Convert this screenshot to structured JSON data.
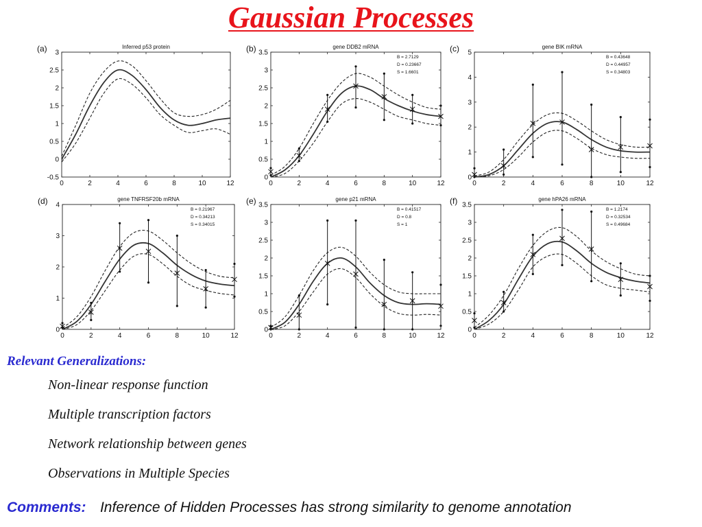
{
  "title": "Gaussian Processes",
  "generalizations": {
    "heading": "Relevant Generalizations:",
    "items": [
      "Non-linear response function",
      "Multiple transcription factors",
      "Network relationship between genes",
      "Observations in Multiple Species"
    ]
  },
  "comments": {
    "label": "Comments:",
    "text": "Inference of Hidden Processes has strong similarity to genome annotation"
  },
  "chart_data": [
    {
      "type": "line",
      "panel_label": "(a)",
      "title": "Inferred p53 protein",
      "xlim": [
        0,
        12
      ],
      "ylim": [
        -0.5,
        3
      ],
      "xticks": [
        0,
        2,
        4,
        6,
        8,
        10,
        12
      ],
      "yticks": [
        -0.5,
        0,
        0.5,
        1,
        1.5,
        2,
        2.5,
        3
      ],
      "ytick_labels": [
        "-0.5",
        "0",
        "0.5",
        "1",
        "1.5",
        "2",
        "2.5",
        "3"
      ],
      "params": [],
      "curve": {
        "x": [
          0,
          1,
          2,
          3,
          4,
          5,
          6,
          7,
          8,
          9,
          10,
          11,
          12
        ],
        "mean": [
          0,
          0.7,
          1.5,
          2.15,
          2.5,
          2.35,
          1.95,
          1.45,
          1.1,
          0.95,
          1.0,
          1.1,
          1.15
        ],
        "upper": [
          0.08,
          0.95,
          1.85,
          2.45,
          2.75,
          2.62,
          2.2,
          1.7,
          1.3,
          1.2,
          1.25,
          1.4,
          1.65
        ],
        "lower": [
          -0.08,
          0.45,
          1.15,
          1.85,
          2.25,
          2.1,
          1.72,
          1.25,
          0.95,
          0.75,
          0.8,
          0.85,
          0.7
        ]
      },
      "observations": []
    },
    {
      "type": "line",
      "panel_label": "(b)",
      "title": "gene DDB2 mRNA",
      "xlim": [
        0,
        12
      ],
      "ylim": [
        0,
        3.5
      ],
      "xticks": [
        0,
        2,
        4,
        6,
        8,
        10,
        12
      ],
      "yticks": [
        0,
        0.5,
        1,
        1.5,
        2,
        2.5,
        3,
        3.5
      ],
      "ytick_labels": [
        "0",
        "0.5",
        "1",
        "1.5",
        "2",
        "2.5",
        "3",
        "3.5"
      ],
      "params": [
        "B = 2.7129",
        "D = 0.23667",
        "S = 1.6601"
      ],
      "curve": {
        "x": [
          0,
          1,
          2,
          3,
          4,
          5,
          6,
          7,
          8,
          9,
          10,
          11,
          12
        ],
        "mean": [
          0,
          0.2,
          0.6,
          1.2,
          1.85,
          2.35,
          2.55,
          2.45,
          2.2,
          2.0,
          1.85,
          1.75,
          1.7
        ],
        "upper": [
          0.05,
          0.3,
          0.8,
          1.5,
          2.15,
          2.65,
          2.9,
          2.8,
          2.55,
          2.3,
          2.1,
          1.95,
          1.9
        ],
        "lower": [
          0,
          0.1,
          0.45,
          0.95,
          1.55,
          2.05,
          2.2,
          2.1,
          1.9,
          1.7,
          1.6,
          1.5,
          1.45
        ]
      },
      "observations": [
        {
          "x": 0,
          "y": 0.15,
          "lo": 0.05,
          "hi": 0.25
        },
        {
          "x": 2,
          "y": 0.6,
          "lo": 0.45,
          "hi": 0.8
        },
        {
          "x": 4,
          "y": 1.9,
          "lo": 1.55,
          "hi": 2.3
        },
        {
          "x": 6,
          "y": 2.55,
          "lo": 1.95,
          "hi": 3.1
        },
        {
          "x": 8,
          "y": 2.25,
          "lo": 1.6,
          "hi": 2.9
        },
        {
          "x": 10,
          "y": 1.9,
          "lo": 1.5,
          "hi": 2.3
        },
        {
          "x": 12,
          "y": 1.7,
          "lo": 1.45,
          "hi": 2.0
        }
      ]
    },
    {
      "type": "line",
      "panel_label": "(c)",
      "title": "gene BIK mRNA",
      "xlim": [
        0,
        12
      ],
      "ylim": [
        0,
        5
      ],
      "xticks": [
        0,
        2,
        4,
        6,
        8,
        10,
        12
      ],
      "yticks": [
        0,
        1,
        2,
        3,
        4,
        5
      ],
      "ytick_labels": [
        "0",
        "1",
        "2",
        "3",
        "4",
        "5"
      ],
      "params": [
        "B = 0.43648",
        "D = 0.44957",
        "S = 0.34803"
      ],
      "curve": {
        "x": [
          0,
          1,
          2,
          3,
          4,
          5,
          6,
          7,
          8,
          9,
          10,
          11,
          12
        ],
        "mean": [
          0,
          0.1,
          0.45,
          1.1,
          1.75,
          2.15,
          2.2,
          1.9,
          1.5,
          1.2,
          1.05,
          1.0,
          1.0
        ],
        "upper": [
          0.05,
          0.2,
          0.7,
          1.45,
          2.1,
          2.5,
          2.55,
          2.25,
          1.85,
          1.5,
          1.3,
          1.2,
          1.2
        ],
        "lower": [
          0,
          0.05,
          0.3,
          0.8,
          1.4,
          1.8,
          1.85,
          1.55,
          1.15,
          0.9,
          0.8,
          0.75,
          0.75
        ]
      },
      "observations": [
        {
          "x": 0,
          "y": 0.1,
          "lo": 0,
          "hi": 0.35
        },
        {
          "x": 2,
          "y": 0.45,
          "lo": 0.1,
          "hi": 1.1
        },
        {
          "x": 4,
          "y": 2.15,
          "lo": 0.8,
          "hi": 3.7
        },
        {
          "x": 6,
          "y": 2.2,
          "lo": 0.5,
          "hi": 4.2
        },
        {
          "x": 8,
          "y": 1.1,
          "lo": 0,
          "hi": 2.9
        },
        {
          "x": 10,
          "y": 1.2,
          "lo": 0.2,
          "hi": 2.4
        },
        {
          "x": 12,
          "y": 1.25,
          "lo": 0.4,
          "hi": 2.3
        }
      ]
    },
    {
      "type": "line",
      "panel_label": "(d)",
      "title": "gene TNFRSF20b mRNA",
      "xlim": [
        0,
        12
      ],
      "ylim": [
        0,
        4
      ],
      "xticks": [
        0,
        2,
        4,
        6,
        8,
        10,
        12
      ],
      "yticks": [
        0,
        1,
        2,
        3,
        4
      ],
      "ytick_labels": [
        "0",
        "1",
        "2",
        "3",
        "4"
      ],
      "params": [
        "B = 0.21967",
        "D = 0.34213",
        "S = 0.34015"
      ],
      "curve": {
        "x": [
          0,
          1,
          2,
          3,
          4,
          5,
          6,
          7,
          8,
          9,
          10,
          11,
          12
        ],
        "mean": [
          0,
          0.25,
          0.8,
          1.55,
          2.25,
          2.7,
          2.75,
          2.45,
          2.05,
          1.75,
          1.55,
          1.45,
          1.4
        ],
        "upper": [
          0.05,
          0.4,
          1.05,
          1.9,
          2.65,
          3.1,
          3.15,
          2.85,
          2.45,
          2.1,
          1.85,
          1.7,
          1.65
        ],
        "lower": [
          0,
          0.15,
          0.6,
          1.25,
          1.9,
          2.35,
          2.4,
          2.1,
          1.7,
          1.4,
          1.25,
          1.15,
          1.1
        ]
      },
      "observations": [
        {
          "x": 0,
          "y": 0.1,
          "lo": 0.05,
          "hi": 0.2
        },
        {
          "x": 2,
          "y": 0.55,
          "lo": 0.3,
          "hi": 0.85
        },
        {
          "x": 4,
          "y": 2.6,
          "lo": 1.85,
          "hi": 3.4
        },
        {
          "x": 6,
          "y": 2.5,
          "lo": 1.5,
          "hi": 3.5
        },
        {
          "x": 8,
          "y": 1.8,
          "lo": 0.75,
          "hi": 3.0
        },
        {
          "x": 10,
          "y": 1.3,
          "lo": 0.7,
          "hi": 1.9
        },
        {
          "x": 12,
          "y": 1.6,
          "lo": 1.05,
          "hi": 2.1
        }
      ]
    },
    {
      "type": "line",
      "panel_label": "(e)",
      "title": "gene p21 mRNA",
      "xlim": [
        0,
        12
      ],
      "ylim": [
        0,
        3.5
      ],
      "xticks": [
        0,
        2,
        4,
        6,
        8,
        10,
        12
      ],
      "yticks": [
        0,
        0.5,
        1,
        1.5,
        2,
        2.5,
        3,
        3.5
      ],
      "ytick_labels": [
        "0",
        "0.5",
        "1",
        "1.5",
        "2",
        "2.5",
        "3",
        "3.5"
      ],
      "params": [
        "B = 0.41517",
        "D = 0.8",
        "S = 1"
      ],
      "curve": {
        "x": [
          0,
          1,
          2,
          3,
          4,
          5,
          6,
          7,
          8,
          9,
          10,
          11,
          12
        ],
        "mean": [
          0,
          0.2,
          0.7,
          1.35,
          1.85,
          2.0,
          1.75,
          1.3,
          0.95,
          0.75,
          0.7,
          0.72,
          0.7
        ],
        "upper": [
          0.05,
          0.35,
          0.95,
          1.65,
          2.15,
          2.3,
          2.05,
          1.6,
          1.25,
          1.05,
          1.0,
          1.0,
          1.0
        ],
        "lower": [
          0,
          0.1,
          0.5,
          1.05,
          1.55,
          1.7,
          1.45,
          1.0,
          0.65,
          0.45,
          0.4,
          0.42,
          0.4
        ]
      },
      "observations": [
        {
          "x": 0,
          "y": 0.05,
          "lo": 0,
          "hi": 0.1
        },
        {
          "x": 2,
          "y": 0.4,
          "lo": 0,
          "hi": 0.95
        },
        {
          "x": 4,
          "y": 1.85,
          "lo": 0.7,
          "hi": 3.05
        },
        {
          "x": 6,
          "y": 1.55,
          "lo": 0.05,
          "hi": 3.05
        },
        {
          "x": 8,
          "y": 0.7,
          "lo": 0,
          "hi": 1.95
        },
        {
          "x": 10,
          "y": 0.8,
          "lo": 0,
          "hi": 1.6
        },
        {
          "x": 12,
          "y": 0.65,
          "lo": 0.1,
          "hi": 1.25
        }
      ]
    },
    {
      "type": "line",
      "panel_label": "(f)",
      "title": "gene hPA26 mRNA",
      "xlim": [
        0,
        12
      ],
      "ylim": [
        0,
        3.5
      ],
      "xticks": [
        0,
        2,
        4,
        6,
        8,
        10,
        12
      ],
      "yticks": [
        0,
        0.5,
        1,
        1.5,
        2,
        2.5,
        3,
        3.5
      ],
      "ytick_labels": [
        "0",
        "0.5",
        "1",
        "1.5",
        "2",
        "2.5",
        "3",
        "3.5"
      ],
      "params": [
        "B = 1.2174",
        "D = 0.32534",
        "S = 0.49684"
      ],
      "curve": {
        "x": [
          0,
          1,
          2,
          3,
          4,
          5,
          6,
          7,
          8,
          9,
          10,
          11,
          12
        ],
        "mean": [
          0,
          0.25,
          0.7,
          1.4,
          2.05,
          2.4,
          2.45,
          2.2,
          1.85,
          1.6,
          1.45,
          1.35,
          1.3
        ],
        "upper": [
          0.05,
          0.4,
          0.95,
          1.7,
          2.35,
          2.75,
          2.85,
          2.6,
          2.2,
          1.9,
          1.7,
          1.55,
          1.5
        ],
        "lower": [
          0,
          0.15,
          0.5,
          1.1,
          1.75,
          2.05,
          2.1,
          1.85,
          1.5,
          1.25,
          1.15,
          1.1,
          1.05
        ]
      },
      "observations": [
        {
          "x": 0,
          "y": 0.25,
          "lo": 0.05,
          "hi": 0.45
        },
        {
          "x": 2,
          "y": 0.75,
          "lo": 0.5,
          "hi": 1.05
        },
        {
          "x": 4,
          "y": 2.1,
          "lo": 1.55,
          "hi": 2.65
        },
        {
          "x": 6,
          "y": 2.55,
          "lo": 1.8,
          "hi": 3.35
        },
        {
          "x": 8,
          "y": 2.25,
          "lo": 1.35,
          "hi": 3.3
        },
        {
          "x": 10,
          "y": 1.4,
          "lo": 0.95,
          "hi": 1.85
        },
        {
          "x": 12,
          "y": 1.2,
          "lo": 0.8,
          "hi": 1.5
        }
      ]
    }
  ]
}
